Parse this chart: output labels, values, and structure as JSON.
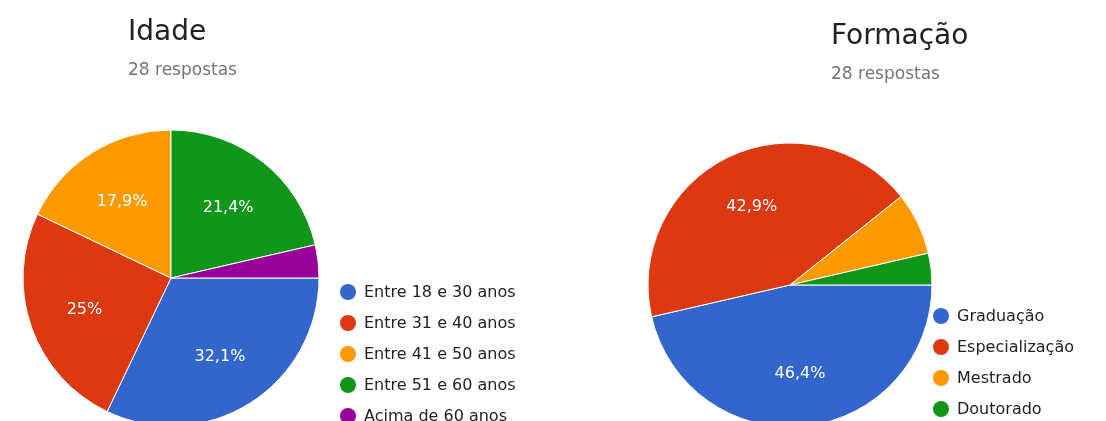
{
  "chart_data": [
    {
      "type": "pie",
      "title": "Idade",
      "subtitle": "28 respostas",
      "categories": [
        "Entre 18 e 30 anos",
        "Entre 31 e 40 anos",
        "Entre 41 e 50 anos",
        "Entre 51 e 60 anos",
        "Acima de 60 anos"
      ],
      "values": [
        32.1,
        25,
        17.9,
        21.4,
        3.6
      ],
      "colors": [
        "#3366cc",
        "#dc3912",
        "#ff9900",
        "#109618",
        "#990099"
      ],
      "value_labels": [
        "32,1%",
        "25%",
        "17,9%",
        "21,4%",
        null
      ],
      "legend": "bottom right"
    },
    {
      "type": "pie",
      "title": "Formação",
      "subtitle": "28 respostas",
      "categories": [
        "Graduação",
        "Especialização",
        "Mestrado",
        "Doutorado"
      ],
      "values": [
        46.4,
        42.9,
        7.1,
        3.6
      ],
      "colors": [
        "#3366cc",
        "#dc3912",
        "#ff9900",
        "#109618"
      ],
      "value_labels": [
        "46,4%",
        "42,9%",
        null,
        null
      ],
      "legend": "bottom right"
    }
  ]
}
